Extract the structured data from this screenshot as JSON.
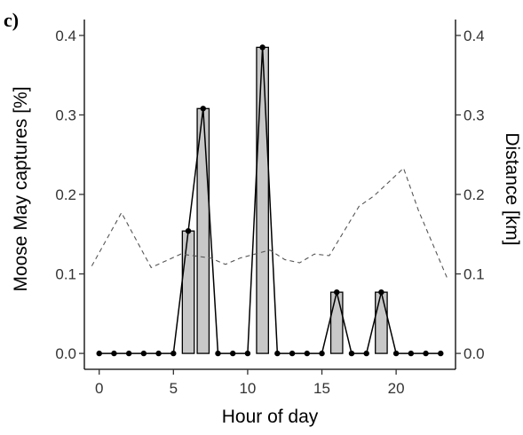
{
  "panel_label": "c)",
  "chart_data": {
    "type": "bar",
    "title": "",
    "xlabel": "Hour of day",
    "ylabel": "Moose May captures [%]",
    "y2label": "Distance [km]",
    "xlim": [
      -1,
      24
    ],
    "ylim": [
      -0.02,
      0.42
    ],
    "y2lim": [
      -0.02,
      0.42
    ],
    "x_ticks": [
      0,
      5,
      10,
      15,
      20
    ],
    "x_tick_labels": [
      "0",
      "5",
      "10",
      "15",
      "20"
    ],
    "y_ticks": [
      0.0,
      0.1,
      0.2,
      0.3,
      0.4
    ],
    "y_tick_labels": [
      "0.0",
      "0.1",
      "0.2",
      "0.3",
      "0.4"
    ],
    "y2_ticks": [
      0.0,
      0.1,
      0.2,
      0.3,
      0.4
    ],
    "y2_tick_labels": [
      "0.0",
      "0.1",
      "0.2",
      "0.3",
      "0.4"
    ],
    "grid": false,
    "hours": [
      0,
      1,
      2,
      3,
      4,
      5,
      6,
      7,
      8,
      9,
      10,
      11,
      12,
      13,
      14,
      15,
      16,
      17,
      18,
      19,
      20,
      21,
      22,
      23
    ],
    "series": [
      {
        "type": "bar+line",
        "axis": "left",
        "values": [
          0,
          0,
          0,
          0,
          0,
          0,
          0.154,
          0.308,
          0,
          0,
          0,
          0.385,
          0,
          0,
          0,
          0,
          0.077,
          0,
          0,
          0.077,
          0,
          0,
          0,
          0
        ],
        "bar_color": "#c8c8c8",
        "line_color": "#000000"
      },
      {
        "type": "dashed-line",
        "axis": "right",
        "x": [
          -0.5,
          1.5,
          3.5,
          5.5,
          7.5,
          8.5,
          9.5,
          10.5,
          11.5,
          12.5,
          13.5,
          14.5,
          15.5,
          17.5,
          18.5,
          20.5,
          21.5,
          23.5
        ],
        "values": [
          0.11,
          0.177,
          0.108,
          0.125,
          0.12,
          0.112,
          0.12,
          0.125,
          0.13,
          0.118,
          0.114,
          0.125,
          0.123,
          0.185,
          0.198,
          0.233,
          0.18,
          0.092
        ],
        "line_color": "#555555"
      }
    ]
  }
}
